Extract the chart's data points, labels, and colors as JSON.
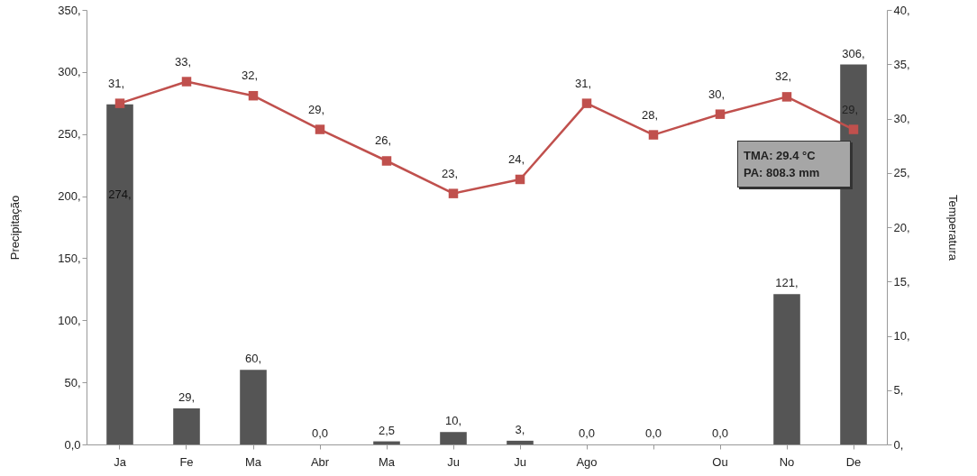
{
  "chart_data": {
    "type": "bar",
    "ylabel": "Precipitação",
    "y2label": "Temperatura",
    "categories": [
      "Ja",
      "Fe",
      "Ma",
      "Abr",
      "Ma",
      "Ju",
      "Ju",
      "Ago",
      null,
      "Ou",
      "No",
      "De"
    ],
    "series": [
      {
        "color": "#555555",
        "values": [
          274,
          29,
          60,
          0,
          2.5,
          10,
          3,
          0,
          0,
          0,
          121,
          306
        ],
        "value_labels": [
          "274,",
          "29,",
          "60,",
          "0,0",
          "2,5",
          "10,",
          "3,",
          "0,0",
          "0,0",
          "0,0",
          "121,",
          "306,"
        ]
      },
      {
        "type": "line",
        "axis": "y2",
        "color": "#c0504d",
        "marker": "square",
        "values": [
          31.4,
          33.4,
          32.1,
          29.0,
          26.1,
          23.1,
          24.4,
          31.4,
          28.5,
          30.4,
          32.0,
          29.0
        ],
        "value_labels": [
          "31,",
          "33,",
          "32,",
          "29,",
          "26,",
          "23,",
          "24,",
          "31,",
          "28,",
          "30,",
          "32,",
          "29,"
        ]
      }
    ],
    "ylim": [
      0,
      350
    ],
    "yticks": [
      {
        "value": 0,
        "label": "0,0"
      },
      {
        "value": 50,
        "label": "50,"
      },
      {
        "value": 100,
        "label": "100,"
      },
      {
        "value": 150,
        "label": "150,"
      },
      {
        "value": 200,
        "label": "200,"
      },
      {
        "value": 250,
        "label": "250,"
      },
      {
        "value": 300,
        "label": "300,"
      },
      {
        "value": 350,
        "label": "350,"
      }
    ],
    "y2lim": [
      0,
      40
    ],
    "y2ticks": [
      {
        "value": 0,
        "label": "0,"
      },
      {
        "value": 5,
        "label": "5,"
      },
      {
        "value": 10,
        "label": "10,"
      },
      {
        "value": 15,
        "label": "15,"
      },
      {
        "value": 20,
        "label": "20,"
      },
      {
        "value": 25,
        "label": "25,"
      },
      {
        "value": 30,
        "label": "30,"
      },
      {
        "value": 35,
        "label": "35,"
      },
      {
        "value": 40,
        "label": "40,"
      }
    ],
    "annotations": [
      "TMA: 29.4 °C",
      "PA: 808.3 mm"
    ],
    "grid": false
  }
}
